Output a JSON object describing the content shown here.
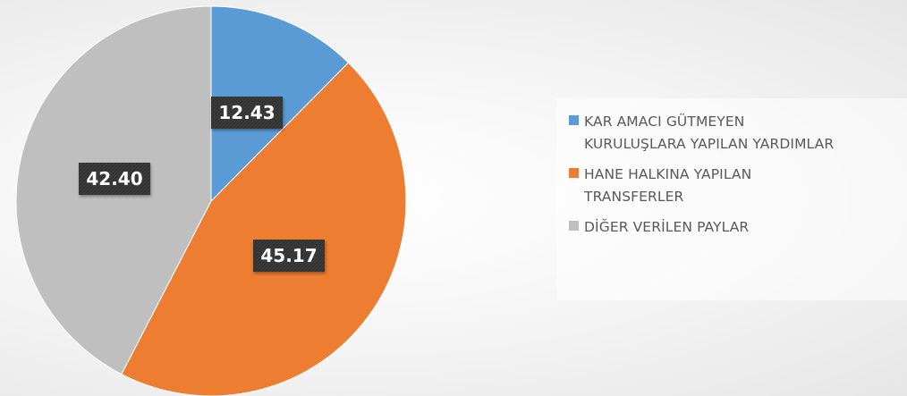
{
  "chart_data": {
    "type": "pie",
    "title": "",
    "legend_position": "right",
    "categories": [
      "KAR AMACI GÜTMEYEN KURULUŞLARA YAPILAN YARDIMLAR",
      "HANE HALKINA YAPILAN TRANSFERLER",
      "DİĞER VERİLEN PAYLAR"
    ],
    "values": [
      12.43,
      45.17,
      42.4
    ],
    "data_labels": [
      "12.43",
      "45.17",
      "42.40"
    ],
    "colors": [
      "#5B9BD5",
      "#ED7D31",
      "#BFBFBF"
    ]
  },
  "legend": {
    "items": [
      {
        "label_line1": "KAR AMACI GÜTMEYEN",
        "label_line2": "KURULUŞLARA YAPILAN YARDIMLAR"
      },
      {
        "label_line1": "HANE HALKINA YAPILAN",
        "label_line2": "TRANSFERLER"
      },
      {
        "label_line1": "DİĞER VERİLEN PAYLAR",
        "label_line2": ""
      }
    ]
  }
}
